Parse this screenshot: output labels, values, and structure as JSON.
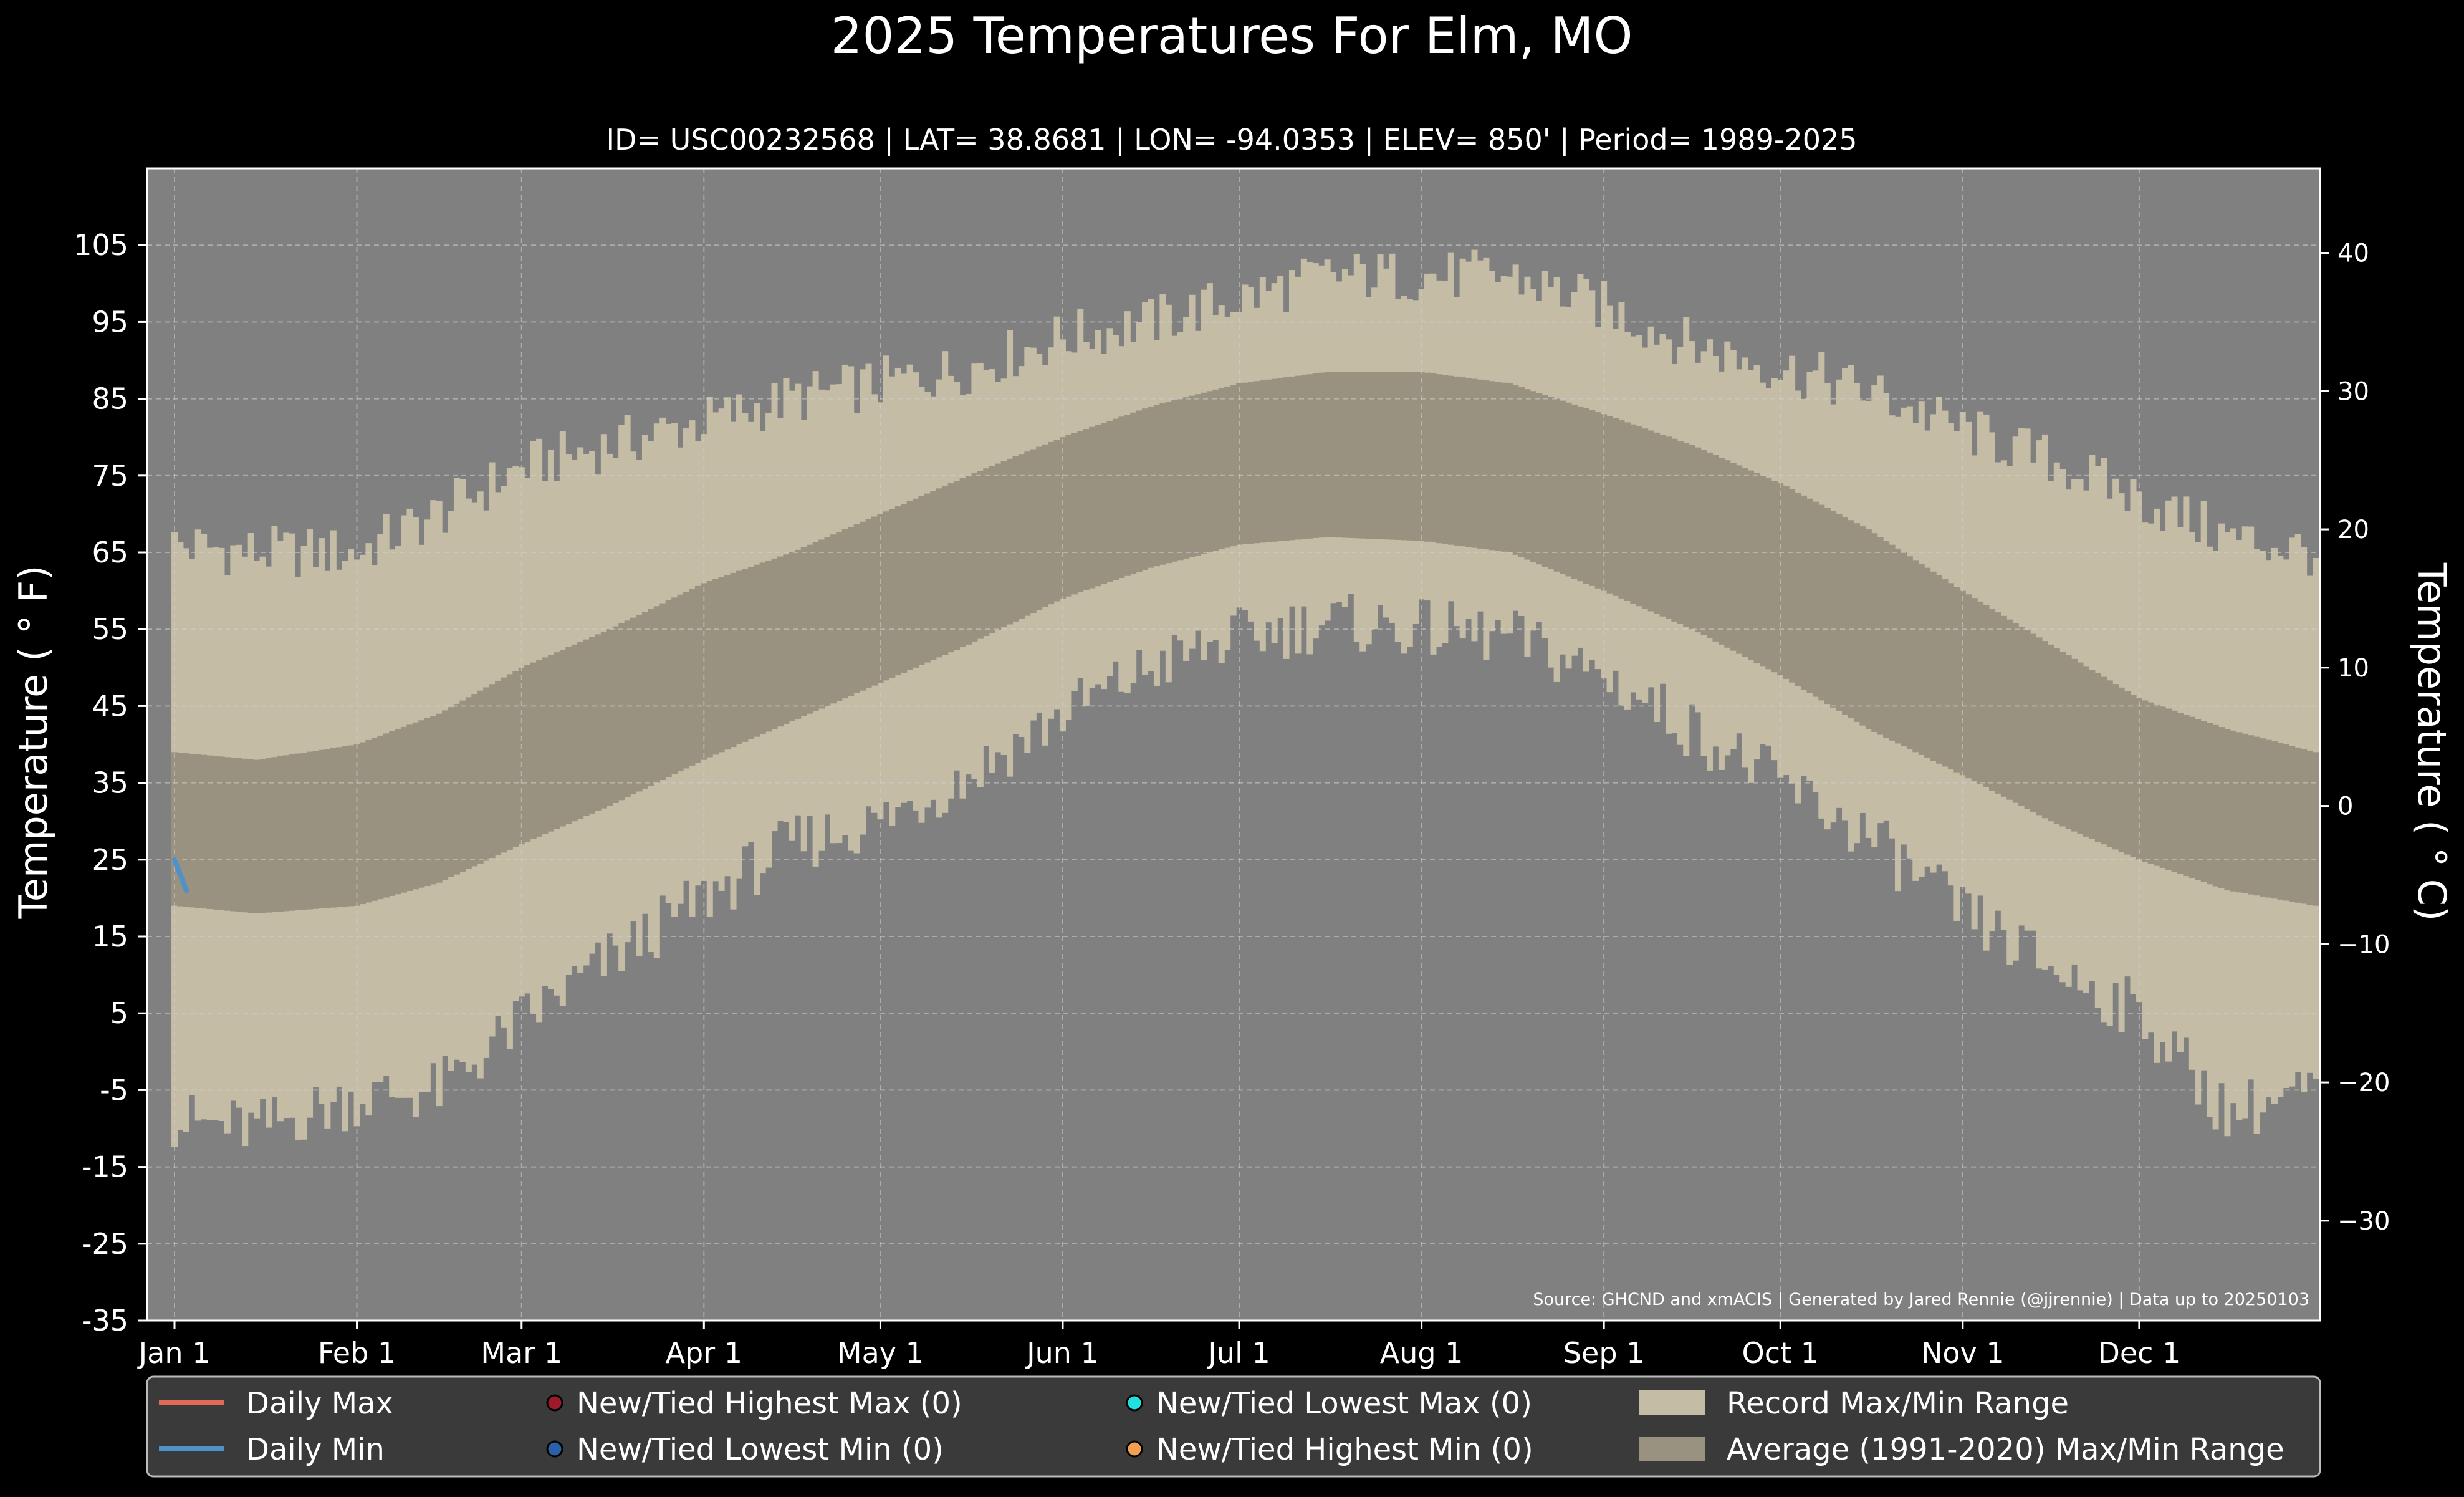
{
  "chart_data": {
    "type": "bar",
    "title": "2025 Temperatures For Elm, MO",
    "subtitle": "ID= USC00232568 | LAT= 38.8681 | LON= -94.0353 | ELEV= 850' | Period= 1989-2025",
    "ylabel": "Temperature ($^\\circ$F)",
    "ylabel_display": "Temperature ( ° F)",
    "y2label": "Temperature ( ° C)",
    "source": "Source: GHCND and xmACIS | Generated by Jared Rennie (@jjrennie) | Data up to 20250103",
    "ylim": [
      -35,
      115
    ],
    "y_ticks": [
      "105",
      "95",
      "85",
      "75",
      "65",
      "55",
      "45",
      "35",
      "25",
      "15",
      "5",
      "-5",
      "-15",
      "-25",
      "-35"
    ],
    "y2_ticks": [
      "40",
      "30",
      "20",
      "10",
      "0",
      "−10",
      "−20",
      "−30"
    ],
    "x_ticks": [
      "Jan 1",
      "Feb 1",
      "Mar 1",
      "Apr 1",
      "May 1",
      "Jun 1",
      "Jul 1",
      "Aug 1",
      "Sep 1",
      "Oct 1",
      "Nov 1",
      "Dec 1"
    ],
    "x_tick_days": [
      1,
      32,
      60,
      91,
      121,
      152,
      182,
      213,
      244,
      274,
      305,
      335
    ],
    "day_range": [
      1,
      365
    ],
    "grid": true,
    "legend_placement": "bottom",
    "colors": {
      "background": "#000000",
      "plot_background": "#808080",
      "record_range": "#c4bca4",
      "average_range": "#9a9280",
      "daily_max": "#e06a55",
      "daily_min": "#4d93c8",
      "new_high_max": "#9e1a2a",
      "new_low_min": "#2b5fa8",
      "new_low_max": "#22e0e0",
      "new_high_min": "#f0a050",
      "legend_bg": "#3a3a3a"
    },
    "record_range_knots": {
      "days": [
        1,
        15,
        32,
        46,
        60,
        75,
        91,
        106,
        121,
        136,
        152,
        167,
        182,
        197,
        213,
        228,
        244,
        259,
        274,
        289,
        305,
        320,
        335,
        350,
        365
      ],
      "max": [
        66,
        65,
        65,
        70,
        76,
        79,
        82,
        85,
        87,
        89,
        93,
        95,
        98,
        101,
        101,
        101,
        97,
        92,
        89,
        86,
        81,
        77,
        72,
        67,
        65
      ],
      "min": [
        -9,
        -10,
        -6,
        -5,
        4,
        12,
        20,
        27,
        30,
        36,
        44,
        50,
        54,
        56,
        55,
        54,
        49,
        42,
        35,
        28,
        18,
        11,
        5,
        -8,
        -5
      ]
    },
    "average_range_knots": {
      "days": [
        1,
        15,
        32,
        46,
        60,
        75,
        91,
        106,
        121,
        136,
        152,
        167,
        182,
        197,
        213,
        228,
        244,
        259,
        274,
        289,
        305,
        320,
        335,
        350,
        365
      ],
      "max": [
        39,
        38,
        40,
        44,
        50,
        55,
        61,
        65,
        70,
        75,
        80,
        84,
        87,
        88.5,
        88.5,
        87,
        83,
        79,
        74,
        68,
        60,
        53,
        46,
        42,
        39
      ],
      "min": [
        19,
        18,
        19,
        22,
        27,
        32,
        38,
        43,
        48,
        53,
        59,
        63,
        66,
        67,
        66.5,
        65,
        60,
        55,
        49,
        42,
        36,
        30,
        25,
        21,
        19
      ]
    },
    "series": [
      {
        "name": "Daily Max",
        "x": [
          1,
          2,
          3
        ],
        "values": [
          25,
          23,
          21
        ]
      },
      {
        "name": "Daily Min",
        "x": [
          1,
          2,
          3
        ],
        "values": [
          25,
          23,
          21
        ]
      }
    ],
    "legend": [
      {
        "label": "Daily Max",
        "kind": "line",
        "color_key": "daily_max"
      },
      {
        "label": "Daily Min",
        "kind": "line",
        "color_key": "daily_min"
      },
      {
        "label": "New/Tied Highest Max (0)",
        "kind": "dot",
        "color_key": "new_high_max"
      },
      {
        "label": "New/Tied Lowest Min (0)",
        "kind": "dot",
        "color_key": "new_low_min"
      },
      {
        "label": "New/Tied Lowest Max (0)",
        "kind": "dot",
        "color_key": "new_low_max"
      },
      {
        "label": "New/Tied Highest Min (0)",
        "kind": "dot",
        "color_key": "new_high_min"
      },
      {
        "label": "Record Max/Min Range",
        "kind": "patch",
        "color_key": "record_range"
      },
      {
        "label": "Average (1991-2020) Max/Min Range",
        "kind": "patch",
        "color_key": "average_range"
      }
    ]
  }
}
